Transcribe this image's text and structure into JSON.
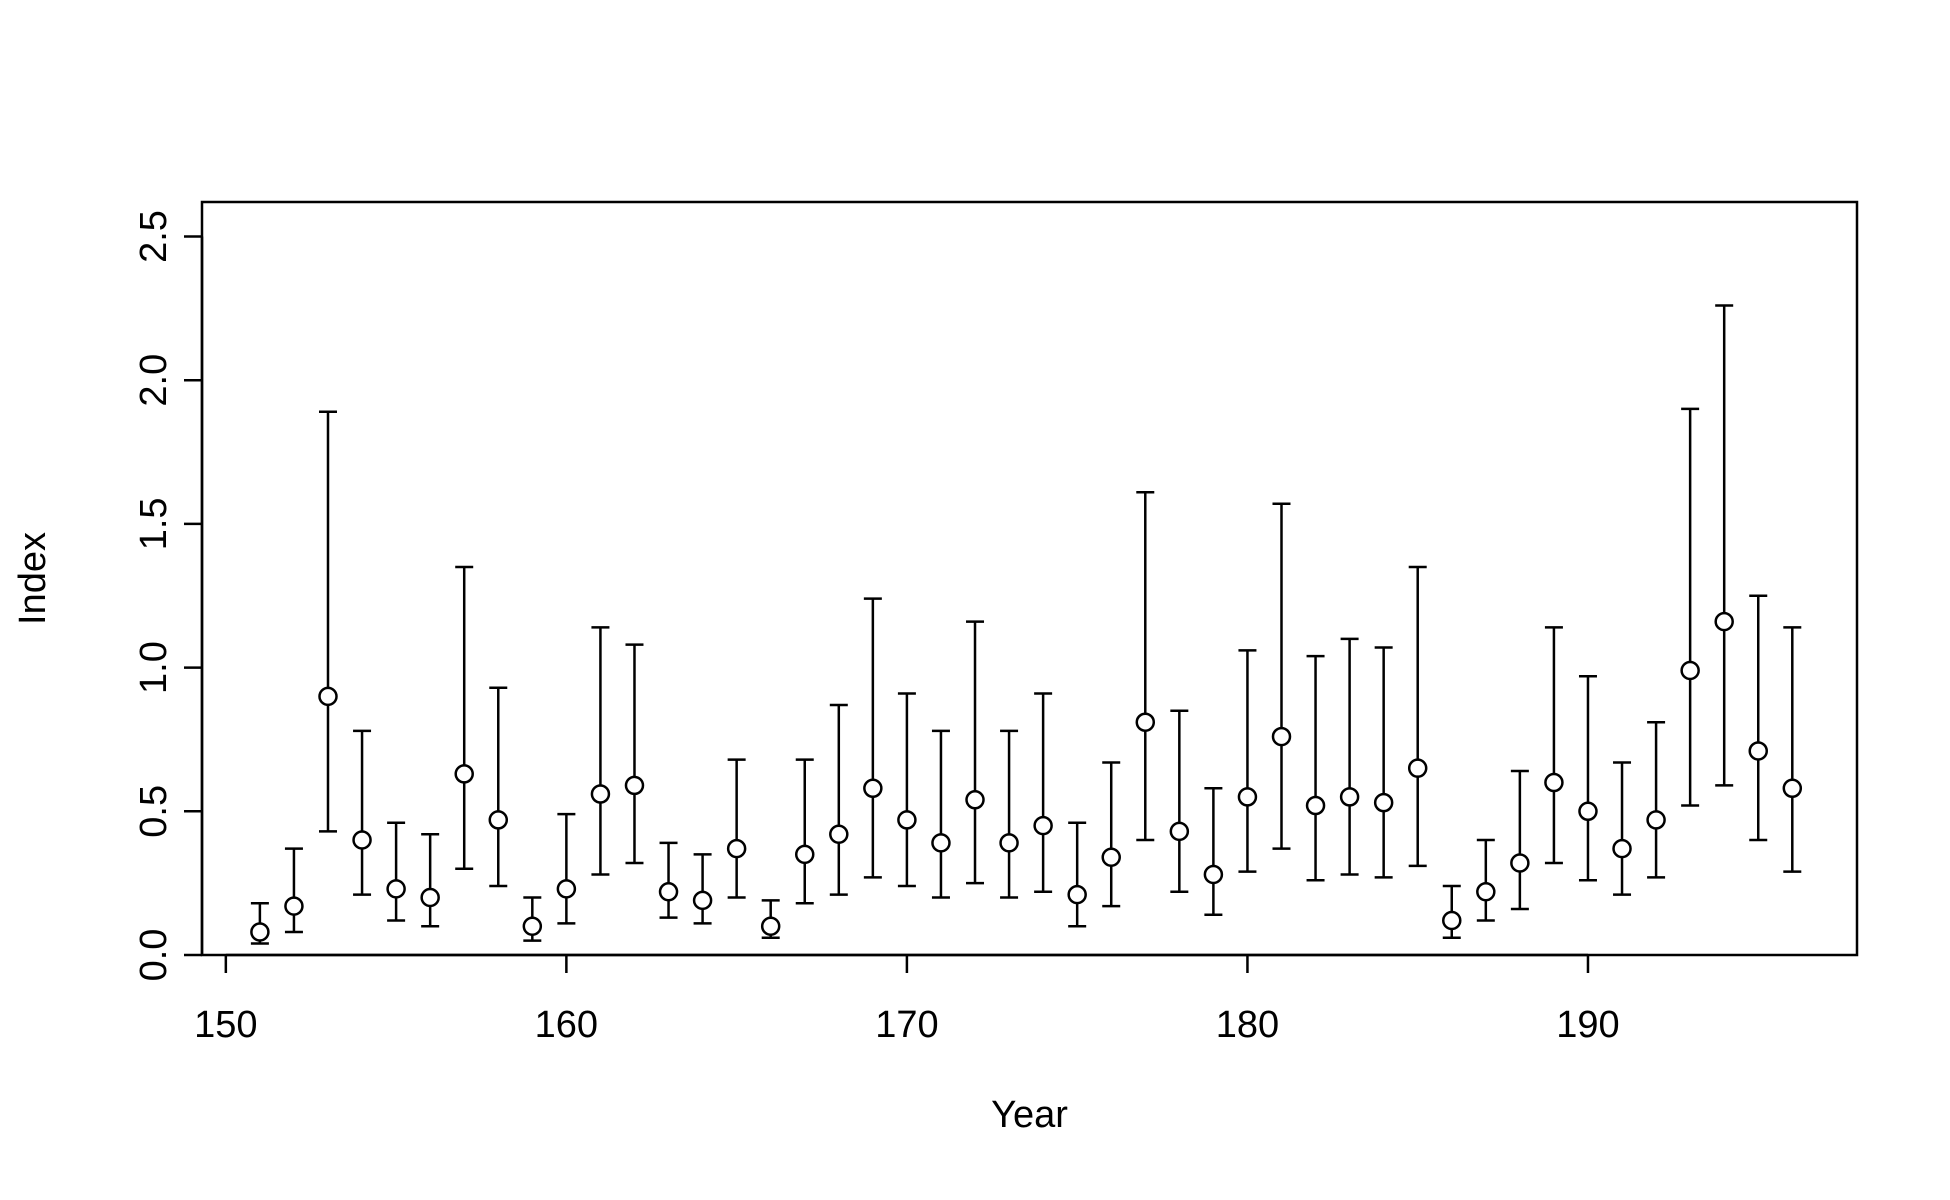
{
  "chart_data": {
    "type": "scatter",
    "xlabel": "Year",
    "ylabel": "Index",
    "xlim": [
      149.3,
      197.9
    ],
    "ylim": [
      0,
      2.62
    ],
    "xticks": [
      150,
      160,
      170,
      180,
      190
    ],
    "yticks": [
      0,
      0.5,
      1,
      1.5,
      2,
      2.5
    ],
    "xtick_labels": [
      "150",
      "160",
      "170",
      "180",
      "190"
    ],
    "ytick_labels": [
      "0.0",
      "0.5",
      "1.0",
      "1.5",
      "2.0",
      "2.5"
    ],
    "grid": false,
    "legend": "none",
    "series": [
      {
        "x": [
          151,
          152,
          153,
          154,
          155,
          156,
          157,
          158,
          159,
          160,
          161,
          162,
          163,
          164,
          165,
          166,
          167,
          168,
          169,
          170,
          171,
          172,
          173,
          174,
          175,
          176,
          177,
          178,
          179,
          180,
          181,
          182,
          183,
          184,
          185,
          186,
          187,
          188,
          189,
          190,
          191,
          192,
          193,
          194,
          195,
          196
        ],
        "y": [
          0.08,
          0.17,
          0.9,
          0.4,
          0.23,
          0.2,
          0.63,
          0.47,
          0.1,
          0.23,
          0.56,
          0.59,
          0.22,
          0.19,
          0.37,
          0.1,
          0.35,
          0.42,
          0.58,
          0.47,
          0.39,
          0.54,
          0.39,
          0.45,
          0.21,
          0.34,
          0.81,
          0.43,
          0.28,
          0.55,
          0.76,
          0.52,
          0.55,
          0.53,
          0.65,
          0.12,
          0.22,
          0.32,
          0.6,
          0.5,
          0.37,
          0.47,
          0.99,
          1.16,
          0.71,
          0.58
        ],
        "lower": [
          0.04,
          0.08,
          0.43,
          0.21,
          0.12,
          0.1,
          0.3,
          0.24,
          0.05,
          0.11,
          0.28,
          0.32,
          0.13,
          0.11,
          0.2,
          0.06,
          0.18,
          0.21,
          0.27,
          0.24,
          0.2,
          0.25,
          0.2,
          0.22,
          0.1,
          0.17,
          0.4,
          0.22,
          0.14,
          0.29,
          0.37,
          0.26,
          0.28,
          0.27,
          0.31,
          0.06,
          0.12,
          0.16,
          0.32,
          0.26,
          0.21,
          0.27,
          0.52,
          0.59,
          0.4,
          0.29
        ],
        "upper": [
          0.18,
          0.37,
          1.89,
          0.78,
          0.46,
          0.42,
          1.35,
          0.93,
          0.2,
          0.49,
          1.14,
          1.08,
          0.39,
          0.35,
          0.68,
          0.19,
          0.68,
          0.87,
          1.24,
          0.91,
          0.78,
          1.16,
          0.78,
          0.91,
          0.46,
          0.67,
          1.61,
          0.85,
          0.58,
          1.06,
          1.57,
          1.04,
          1.1,
          1.07,
          1.35,
          0.24,
          0.4,
          0.64,
          1.14,
          0.97,
          0.67,
          0.81,
          1.9,
          2.26,
          1.25,
          1.14
        ]
      }
    ]
  }
}
